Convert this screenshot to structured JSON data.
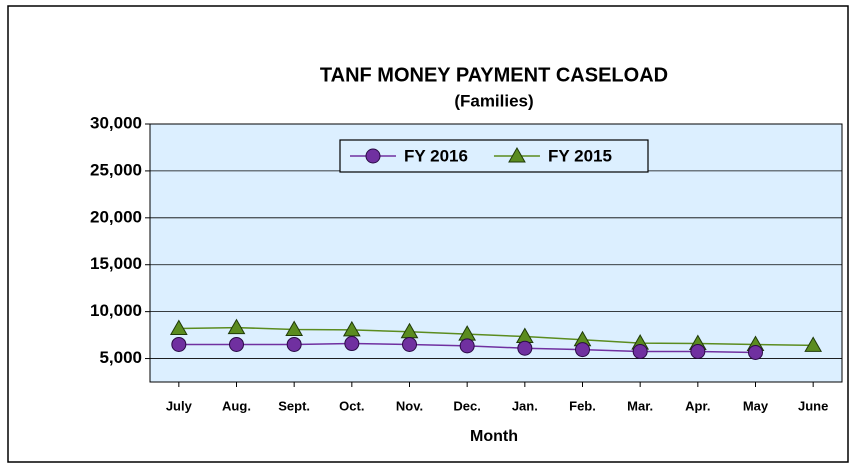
{
  "chart_data": {
    "type": "line",
    "title": "TANF MONEY PAYMENT CASELOAD",
    "subtitle": "(Families)",
    "x_label": "Month",
    "categories": [
      "July",
      "Aug.",
      "Sept.",
      "Oct.",
      "Nov.",
      "Dec.",
      "Jan.",
      "Feb.",
      "Mar.",
      "Apr.",
      "May",
      "June"
    ],
    "series": [
      {
        "name": "FY 2016",
        "color": "#7030a0",
        "marker": "circle",
        "values": [
          6500,
          6500,
          6500,
          6600,
          6500,
          6350,
          6100,
          5950,
          5750,
          5750,
          5650,
          null
        ]
      },
      {
        "name": "FY 2015",
        "color": "#5b8c1f",
        "marker": "triangle",
        "values": [
          8200,
          8300,
          8100,
          8050,
          7850,
          7600,
          7350,
          7000,
          6650,
          6600,
          6500,
          6400
        ]
      }
    ],
    "ylim": [
      2500,
      30000
    ],
    "yticks": [
      {
        "value": 5000,
        "label": "5,000"
      },
      {
        "value": 10000,
        "label": "10,000"
      },
      {
        "value": 15000,
        "label": "15,000"
      },
      {
        "value": 20000,
        "label": "20,000"
      },
      {
        "value": 25000,
        "label": "25,000"
      },
      {
        "value": 30000,
        "label": "30,000"
      }
    ],
    "grid": true,
    "legend": "top"
  }
}
